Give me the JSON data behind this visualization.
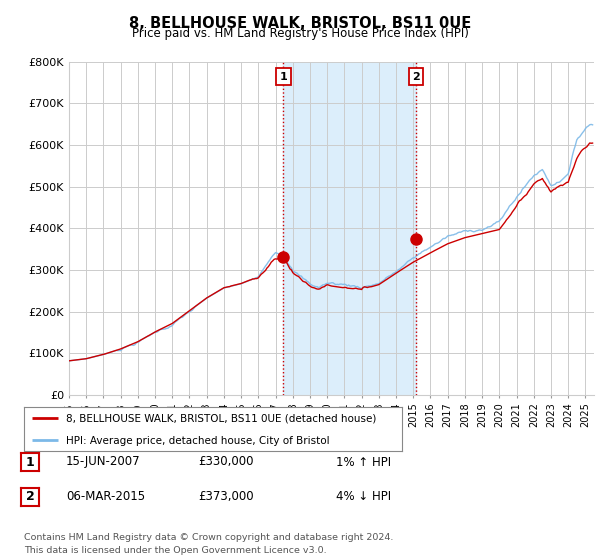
{
  "title": "8, BELLHOUSE WALK, BRISTOL, BS11 0UE",
  "subtitle": "Price paid vs. HM Land Registry's House Price Index (HPI)",
  "xmin": 1995.0,
  "xmax": 2025.5,
  "ymin": 0,
  "ymax": 800000,
  "yticks": [
    0,
    100000,
    200000,
    300000,
    400000,
    500000,
    600000,
    700000,
    800000
  ],
  "ytick_labels": [
    "£0",
    "£100K",
    "£200K",
    "£300K",
    "£400K",
    "£500K",
    "£600K",
    "£700K",
    "£800K"
  ],
  "xticks": [
    1995,
    1996,
    1997,
    1998,
    1999,
    2000,
    2001,
    2002,
    2003,
    2004,
    2005,
    2006,
    2007,
    2008,
    2009,
    2010,
    2011,
    2012,
    2013,
    2014,
    2015,
    2016,
    2017,
    2018,
    2019,
    2020,
    2021,
    2022,
    2023,
    2024,
    2025
  ],
  "sale1_x": 2007.458,
  "sale1_y": 330000,
  "sale1_label": "1",
  "sale2_x": 2015.17,
  "sale2_y": 373000,
  "sale2_label": "2",
  "line_color_property": "#cc0000",
  "line_color_hpi": "#7cb9e8",
  "shaded_region_color": "#dceefb",
  "dashed_line_color": "#cc0000",
  "legend_label1": "8, BELLHOUSE WALK, BRISTOL, BS11 0UE (detached house)",
  "legend_label2": "HPI: Average price, detached house, City of Bristol",
  "table_row1": [
    "1",
    "15-JUN-2007",
    "£330,000",
    "1% ↑ HPI"
  ],
  "table_row2": [
    "2",
    "06-MAR-2015",
    "£373,000",
    "4% ↓ HPI"
  ],
  "footnote": "Contains HM Land Registry data © Crown copyright and database right 2024.\nThis data is licensed under the Open Government Licence v3.0.",
  "bg_color": "#ffffff",
  "plot_bg_color": "#ffffff",
  "grid_color": "#cccccc"
}
